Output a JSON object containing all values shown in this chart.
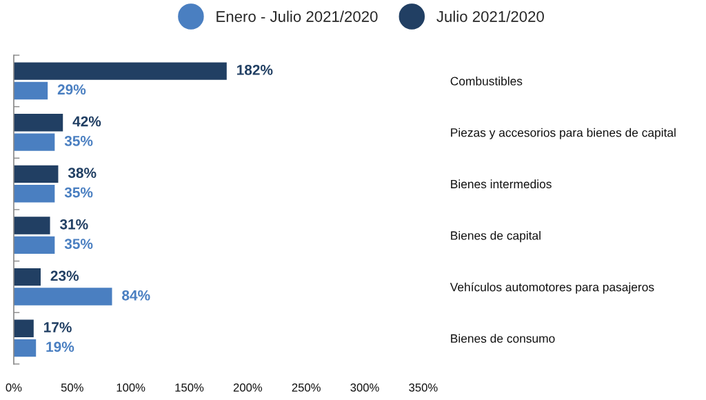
{
  "chart_data": {
    "type": "bar",
    "orientation": "horizontal",
    "categories": [
      "Combustibles",
      "Piezas y accesorios para bienes de capital",
      "Bienes intermedios",
      "Bienes de capital",
      "Vehículos automotores para pasajeros",
      "Bienes de consumo"
    ],
    "series": [
      {
        "name": "Enero - Julio 2021/2020",
        "color": "#4a7fc1",
        "values": [
          29,
          35,
          35,
          35,
          84,
          19
        ],
        "value_labels": [
          "29%",
          "35%",
          "35%",
          "35%",
          "84%",
          "19%"
        ]
      },
      {
        "name": "Julio 2021/2020",
        "color": "#213f63",
        "values": [
          182,
          42,
          38,
          31,
          23,
          17
        ],
        "value_labels": [
          "182%",
          "42%",
          "38%",
          "31%",
          "23%",
          "17%"
        ]
      }
    ],
    "xlim": [
      0,
      350
    ],
    "xticks": [
      {
        "value": 0,
        "label": "0%"
      },
      {
        "value": 50,
        "label": "50%"
      },
      {
        "value": 100,
        "label": "100%"
      },
      {
        "value": 150,
        "label": "150%"
      },
      {
        "value": 200,
        "label": "200%"
      },
      {
        "value": 250,
        "label": "250%"
      },
      {
        "value": 300,
        "label": "300%"
      },
      {
        "value": 350,
        "label": "350%"
      }
    ],
    "legend": "top",
    "grid": false
  }
}
